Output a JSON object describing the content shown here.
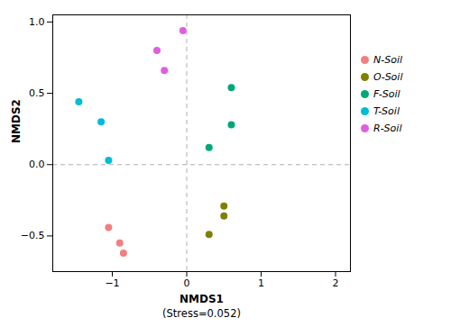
{
  "chart_data": {
    "type": "scatter",
    "xlabel": "NMDS1",
    "annotations": [
      "(Stress=0.052)"
    ],
    "ylabel": "NMDS2",
    "series": [
      {
        "name": "N-Soil",
        "color": "#f08080",
        "x": [
          -1.05,
          -0.9,
          -0.85
        ],
        "values": [
          -0.44,
          -0.55,
          -0.62
        ]
      },
      {
        "name": "O-Soil",
        "color": "#808000",
        "x": [
          0.5,
          0.5,
          0.3
        ],
        "values": [
          -0.29,
          -0.36,
          -0.49
        ]
      },
      {
        "name": "F-Soil",
        "color": "#00a878",
        "x": [
          0.6,
          0.6,
          0.3
        ],
        "values": [
          0.54,
          0.28,
          0.12
        ]
      },
      {
        "name": "T-Soil",
        "color": "#00bcd4",
        "x": [
          -1.45,
          -1.15,
          -1.05
        ],
        "values": [
          0.44,
          0.3,
          0.03
        ]
      },
      {
        "name": "R-Soil",
        "color": "#df5fe0",
        "x": [
          -0.05,
          -0.4,
          -0.3
        ],
        "values": [
          0.94,
          0.8,
          0.66
        ]
      }
    ],
    "xlim": [
      -1.8,
      2.2
    ],
    "ylim": [
      -0.75,
      1.05
    ],
    "xticks": [
      -1,
      0,
      1,
      2
    ],
    "yticks": [
      -0.5,
      {
        "value": 0,
        "label": "0.0"
      },
      0.5,
      {
        "value": 1,
        "label": "1.0"
      }
    ],
    "reference_lines": {
      "x": 0,
      "y": 0,
      "color": "#b0b0b0",
      "line_style": "dashed"
    },
    "marker": "circle",
    "grid": false,
    "legend": "right"
  }
}
